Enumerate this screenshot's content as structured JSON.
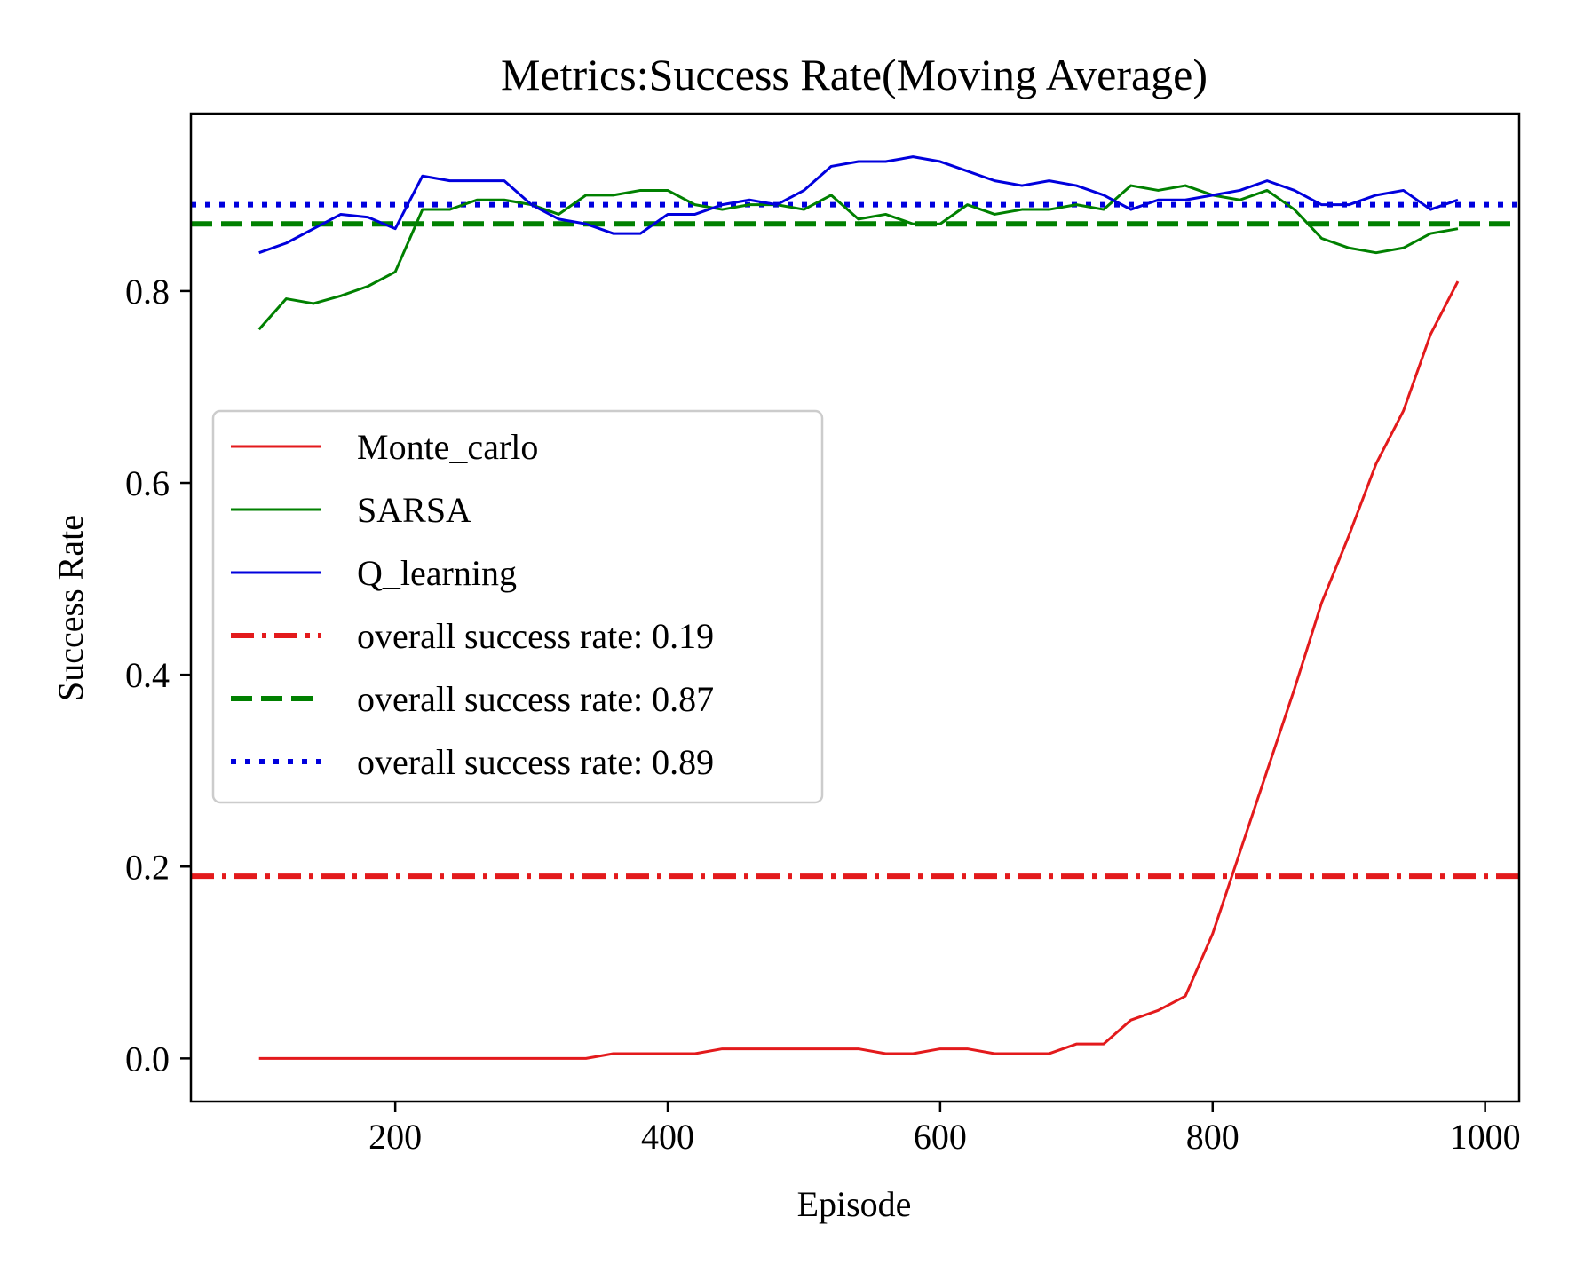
{
  "chart_data": {
    "type": "line",
    "title": "Metrics:Success Rate(Moving Average)",
    "xlabel": "Episode",
    "ylabel": "Success Rate",
    "xlim": [
      50,
      1025
    ],
    "ylim": [
      -0.045,
      0.985
    ],
    "xticks": [
      200,
      400,
      600,
      800,
      1000
    ],
    "xtick_labels": [
      "200",
      "400",
      "600",
      "800",
      "1000"
    ],
    "yticks": [
      0.0,
      0.2,
      0.4,
      0.6,
      0.8
    ],
    "ytick_labels": [
      "0.0",
      "0.2",
      "0.4",
      "0.6",
      "0.8"
    ],
    "grid": false,
    "legend_position": "center-left",
    "x": [
      100,
      120,
      140,
      160,
      180,
      200,
      220,
      240,
      260,
      280,
      300,
      320,
      340,
      360,
      380,
      400,
      420,
      440,
      460,
      480,
      500,
      520,
      540,
      560,
      580,
      600,
      620,
      640,
      660,
      680,
      700,
      720,
      740,
      760,
      780,
      800,
      820,
      840,
      860,
      880,
      900,
      920,
      940,
      960,
      980
    ],
    "series": [
      {
        "name": "Monte_carlo",
        "color": "#e31a1c",
        "style": "solid",
        "values": [
          0,
          0,
          0,
          0,
          0,
          0,
          0,
          0,
          0,
          0,
          0,
          0,
          0,
          0.005,
          0.005,
          0.005,
          0.005,
          0.01,
          0.01,
          0.01,
          0.01,
          0.01,
          0.01,
          0.005,
          0.005,
          0.01,
          0.01,
          0.005,
          0.005,
          0.005,
          0.015,
          0.015,
          0.04,
          0.05,
          0.065,
          0.13,
          0.215,
          0.3,
          0.385,
          0.475,
          0.545,
          0.62,
          0.675,
          0.755,
          0.81
        ]
      },
      {
        "name": "SARSA",
        "color": "#008000",
        "style": "solid",
        "values": [
          0.76,
          0.792,
          0.787,
          0.795,
          0.805,
          0.82,
          0.885,
          0.885,
          0.895,
          0.895,
          0.89,
          0.88,
          0.9,
          0.9,
          0.905,
          0.905,
          0.89,
          0.885,
          0.89,
          0.89,
          0.885,
          0.9,
          0.875,
          0.88,
          0.87,
          0.87,
          0.89,
          0.88,
          0.885,
          0.885,
          0.89,
          0.885,
          0.91,
          0.905,
          0.91,
          0.9,
          0.895,
          0.905,
          0.885,
          0.855,
          0.845,
          0.84,
          0.845,
          0.86,
          0.865
        ]
      },
      {
        "name": "Q_learning",
        "color": "#0000dd",
        "style": "solid",
        "values": [
          0.84,
          0.85,
          0.865,
          0.88,
          0.877,
          0.865,
          0.92,
          0.915,
          0.915,
          0.915,
          0.89,
          0.875,
          0.87,
          0.86,
          0.86,
          0.88,
          0.88,
          0.89,
          0.895,
          0.89,
          0.905,
          0.93,
          0.935,
          0.935,
          0.94,
          0.935,
          0.925,
          0.915,
          0.91,
          0.915,
          0.91,
          0.9,
          0.885,
          0.895,
          0.895,
          0.9,
          0.905,
          0.915,
          0.905,
          0.89,
          0.89,
          0.9,
          0.905,
          0.885,
          0.895
        ]
      }
    ],
    "reference_lines": [
      {
        "name": "overall success rate: 0.19",
        "value": 0.19,
        "color": "#e31a1c",
        "style": "dashdot"
      },
      {
        "name": "overall success rate: 0.87",
        "value": 0.87,
        "color": "#008000",
        "style": "dashed"
      },
      {
        "name": "overall success rate: 0.89",
        "value": 0.89,
        "color": "#0000dd",
        "style": "dotted"
      }
    ]
  }
}
